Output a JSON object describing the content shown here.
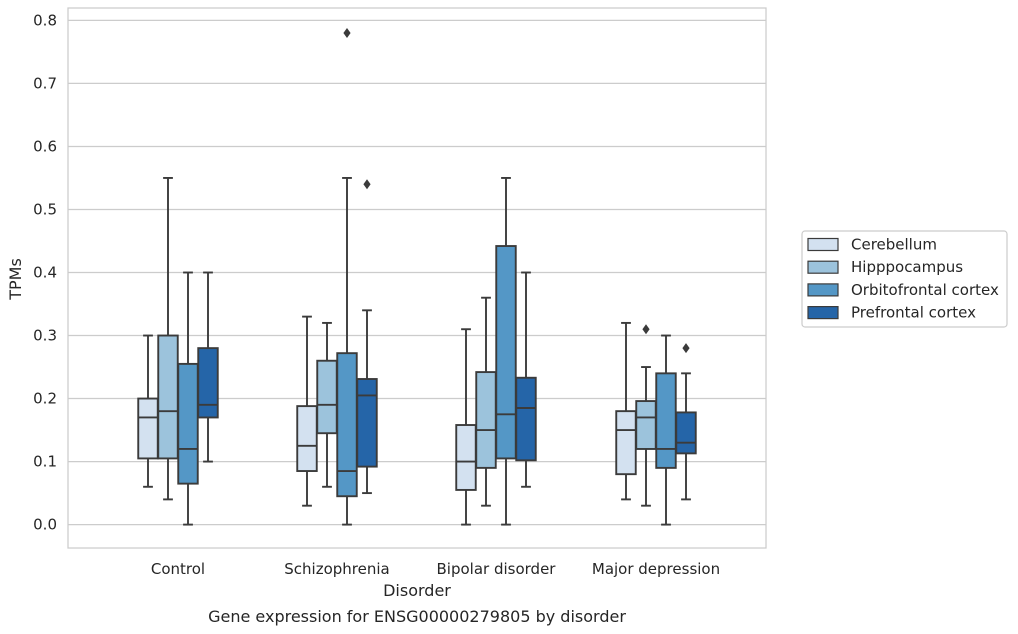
{
  "chart_data": {
    "type": "box",
    "title": "Gene expression for ENSG00000279805 by disorder",
    "xlabel": "Disorder",
    "ylabel": "TPMs",
    "ylim": [
      -0.04,
      0.82
    ],
    "yticks": [
      0.0,
      0.1,
      0.2,
      0.3,
      0.4,
      0.5,
      0.6,
      0.7,
      0.8
    ],
    "ytick_labels": [
      "0.0",
      "0.1",
      "0.2",
      "0.3",
      "0.4",
      "0.5",
      "0.6",
      "0.7",
      "0.8"
    ],
    "grid": "horizontal",
    "legend_position": "right",
    "categories": [
      "Control",
      "Schizophrenia",
      "Bipolar disorder",
      "Major depression"
    ],
    "series": [
      {
        "name": "Cerebellum",
        "color": "#d3e1f0",
        "boxes": [
          {
            "whisker_low": 0.06,
            "q1": 0.105,
            "median": 0.17,
            "q3": 0.2,
            "whisker_high": 0.3,
            "outliers": []
          },
          {
            "whisker_low": 0.03,
            "q1": 0.085,
            "median": 0.125,
            "q3": 0.188,
            "whisker_high": 0.33,
            "outliers": []
          },
          {
            "whisker_low": 0.0,
            "q1": 0.055,
            "median": 0.1,
            "q3": 0.158,
            "whisker_high": 0.31,
            "outliers": []
          },
          {
            "whisker_low": 0.04,
            "q1": 0.08,
            "median": 0.15,
            "q3": 0.18,
            "whisker_high": 0.32,
            "outliers": []
          }
        ]
      },
      {
        "name": "Hipppocampus",
        "color": "#9cc3dc",
        "boxes": [
          {
            "whisker_low": 0.04,
            "q1": 0.105,
            "median": 0.18,
            "q3": 0.3,
            "whisker_high": 0.55,
            "outliers": []
          },
          {
            "whisker_low": 0.06,
            "q1": 0.145,
            "median": 0.19,
            "q3": 0.26,
            "whisker_high": 0.32,
            "outliers": []
          },
          {
            "whisker_low": 0.03,
            "q1": 0.09,
            "median": 0.15,
            "q3": 0.242,
            "whisker_high": 0.36,
            "outliers": []
          },
          {
            "whisker_low": 0.03,
            "q1": 0.12,
            "median": 0.17,
            "q3": 0.196,
            "whisker_high": 0.25,
            "outliers": [
              0.31
            ]
          }
        ]
      },
      {
        "name": "Orbitofrontal cortex",
        "color": "#5497c6",
        "boxes": [
          {
            "whisker_low": 0.0,
            "q1": 0.065,
            "median": 0.12,
            "q3": 0.255,
            "whisker_high": 0.4,
            "outliers": []
          },
          {
            "whisker_low": 0.0,
            "q1": 0.045,
            "median": 0.085,
            "q3": 0.272,
            "whisker_high": 0.55,
            "outliers": [
              0.78
            ]
          },
          {
            "whisker_low": 0.0,
            "q1": 0.105,
            "median": 0.175,
            "q3": 0.442,
            "whisker_high": 0.55,
            "outliers": []
          },
          {
            "whisker_low": 0.0,
            "q1": 0.09,
            "median": 0.12,
            "q3": 0.24,
            "whisker_high": 0.3,
            "outliers": []
          }
        ]
      },
      {
        "name": "Prefrontal cortex",
        "color": "#2565a8",
        "boxes": [
          {
            "whisker_low": 0.1,
            "q1": 0.17,
            "median": 0.19,
            "q3": 0.28,
            "whisker_high": 0.4,
            "outliers": []
          },
          {
            "whisker_low": 0.05,
            "q1": 0.092,
            "median": 0.205,
            "q3": 0.231,
            "whisker_high": 0.34,
            "outliers": [
              0.54
            ]
          },
          {
            "whisker_low": 0.06,
            "q1": 0.102,
            "median": 0.185,
            "q3": 0.233,
            "whisker_high": 0.4,
            "outliers": []
          },
          {
            "whisker_low": 0.04,
            "q1": 0.113,
            "median": 0.13,
            "q3": 0.178,
            "whisker_high": 0.24,
            "outliers": [
              0.28
            ]
          }
        ]
      }
    ]
  }
}
